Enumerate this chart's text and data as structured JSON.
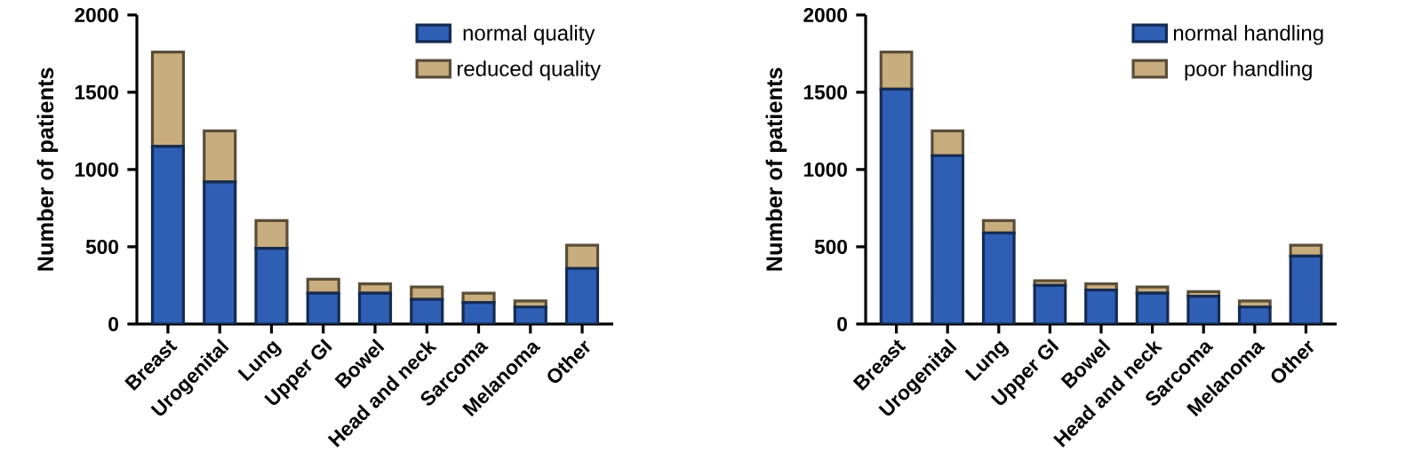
{
  "chart_data": [
    {
      "type": "bar",
      "stacked": true,
      "ylabel": "Number of patients",
      "categories": [
        "Breast",
        "Urogenital",
        "Lung",
        "Upper GI",
        "Bowel",
        "Head and neck",
        "Sarcoma",
        "Melanoma",
        "Other"
      ],
      "series": [
        {
          "name": "normal quality",
          "color": "#2f5fb5",
          "values": [
            1150,
            920,
            490,
            200,
            200,
            160,
            140,
            110,
            360
          ]
        },
        {
          "name": "reduced quality",
          "color": "#c8ad7f",
          "values": [
            610,
            330,
            180,
            90,
            60,
            80,
            60,
            40,
            150
          ]
        }
      ],
      "ylim": [
        0,
        2000
      ],
      "yticks": [
        0,
        500,
        1000,
        1500,
        2000
      ],
      "legend": "top right"
    },
    {
      "type": "bar",
      "stacked": true,
      "ylabel": "Number of patients",
      "categories": [
        "Breast",
        "Urogenital",
        "Lung",
        "Upper GI",
        "Bowel",
        "Head and neck",
        "Sarcoma",
        "Melanoma",
        "Other"
      ],
      "series": [
        {
          "name": "normal handling",
          "color": "#2f5fb5",
          "values": [
            1520,
            1090,
            590,
            250,
            220,
            200,
            180,
            110,
            440
          ]
        },
        {
          "name": "poor handling",
          "color": "#c8ad7f",
          "values": [
            240,
            160,
            80,
            30,
            40,
            40,
            30,
            40,
            70
          ]
        }
      ],
      "ylim": [
        0,
        2000
      ],
      "yticks": [
        0,
        500,
        1000,
        1500,
        2000
      ],
      "legend": "top right"
    }
  ]
}
